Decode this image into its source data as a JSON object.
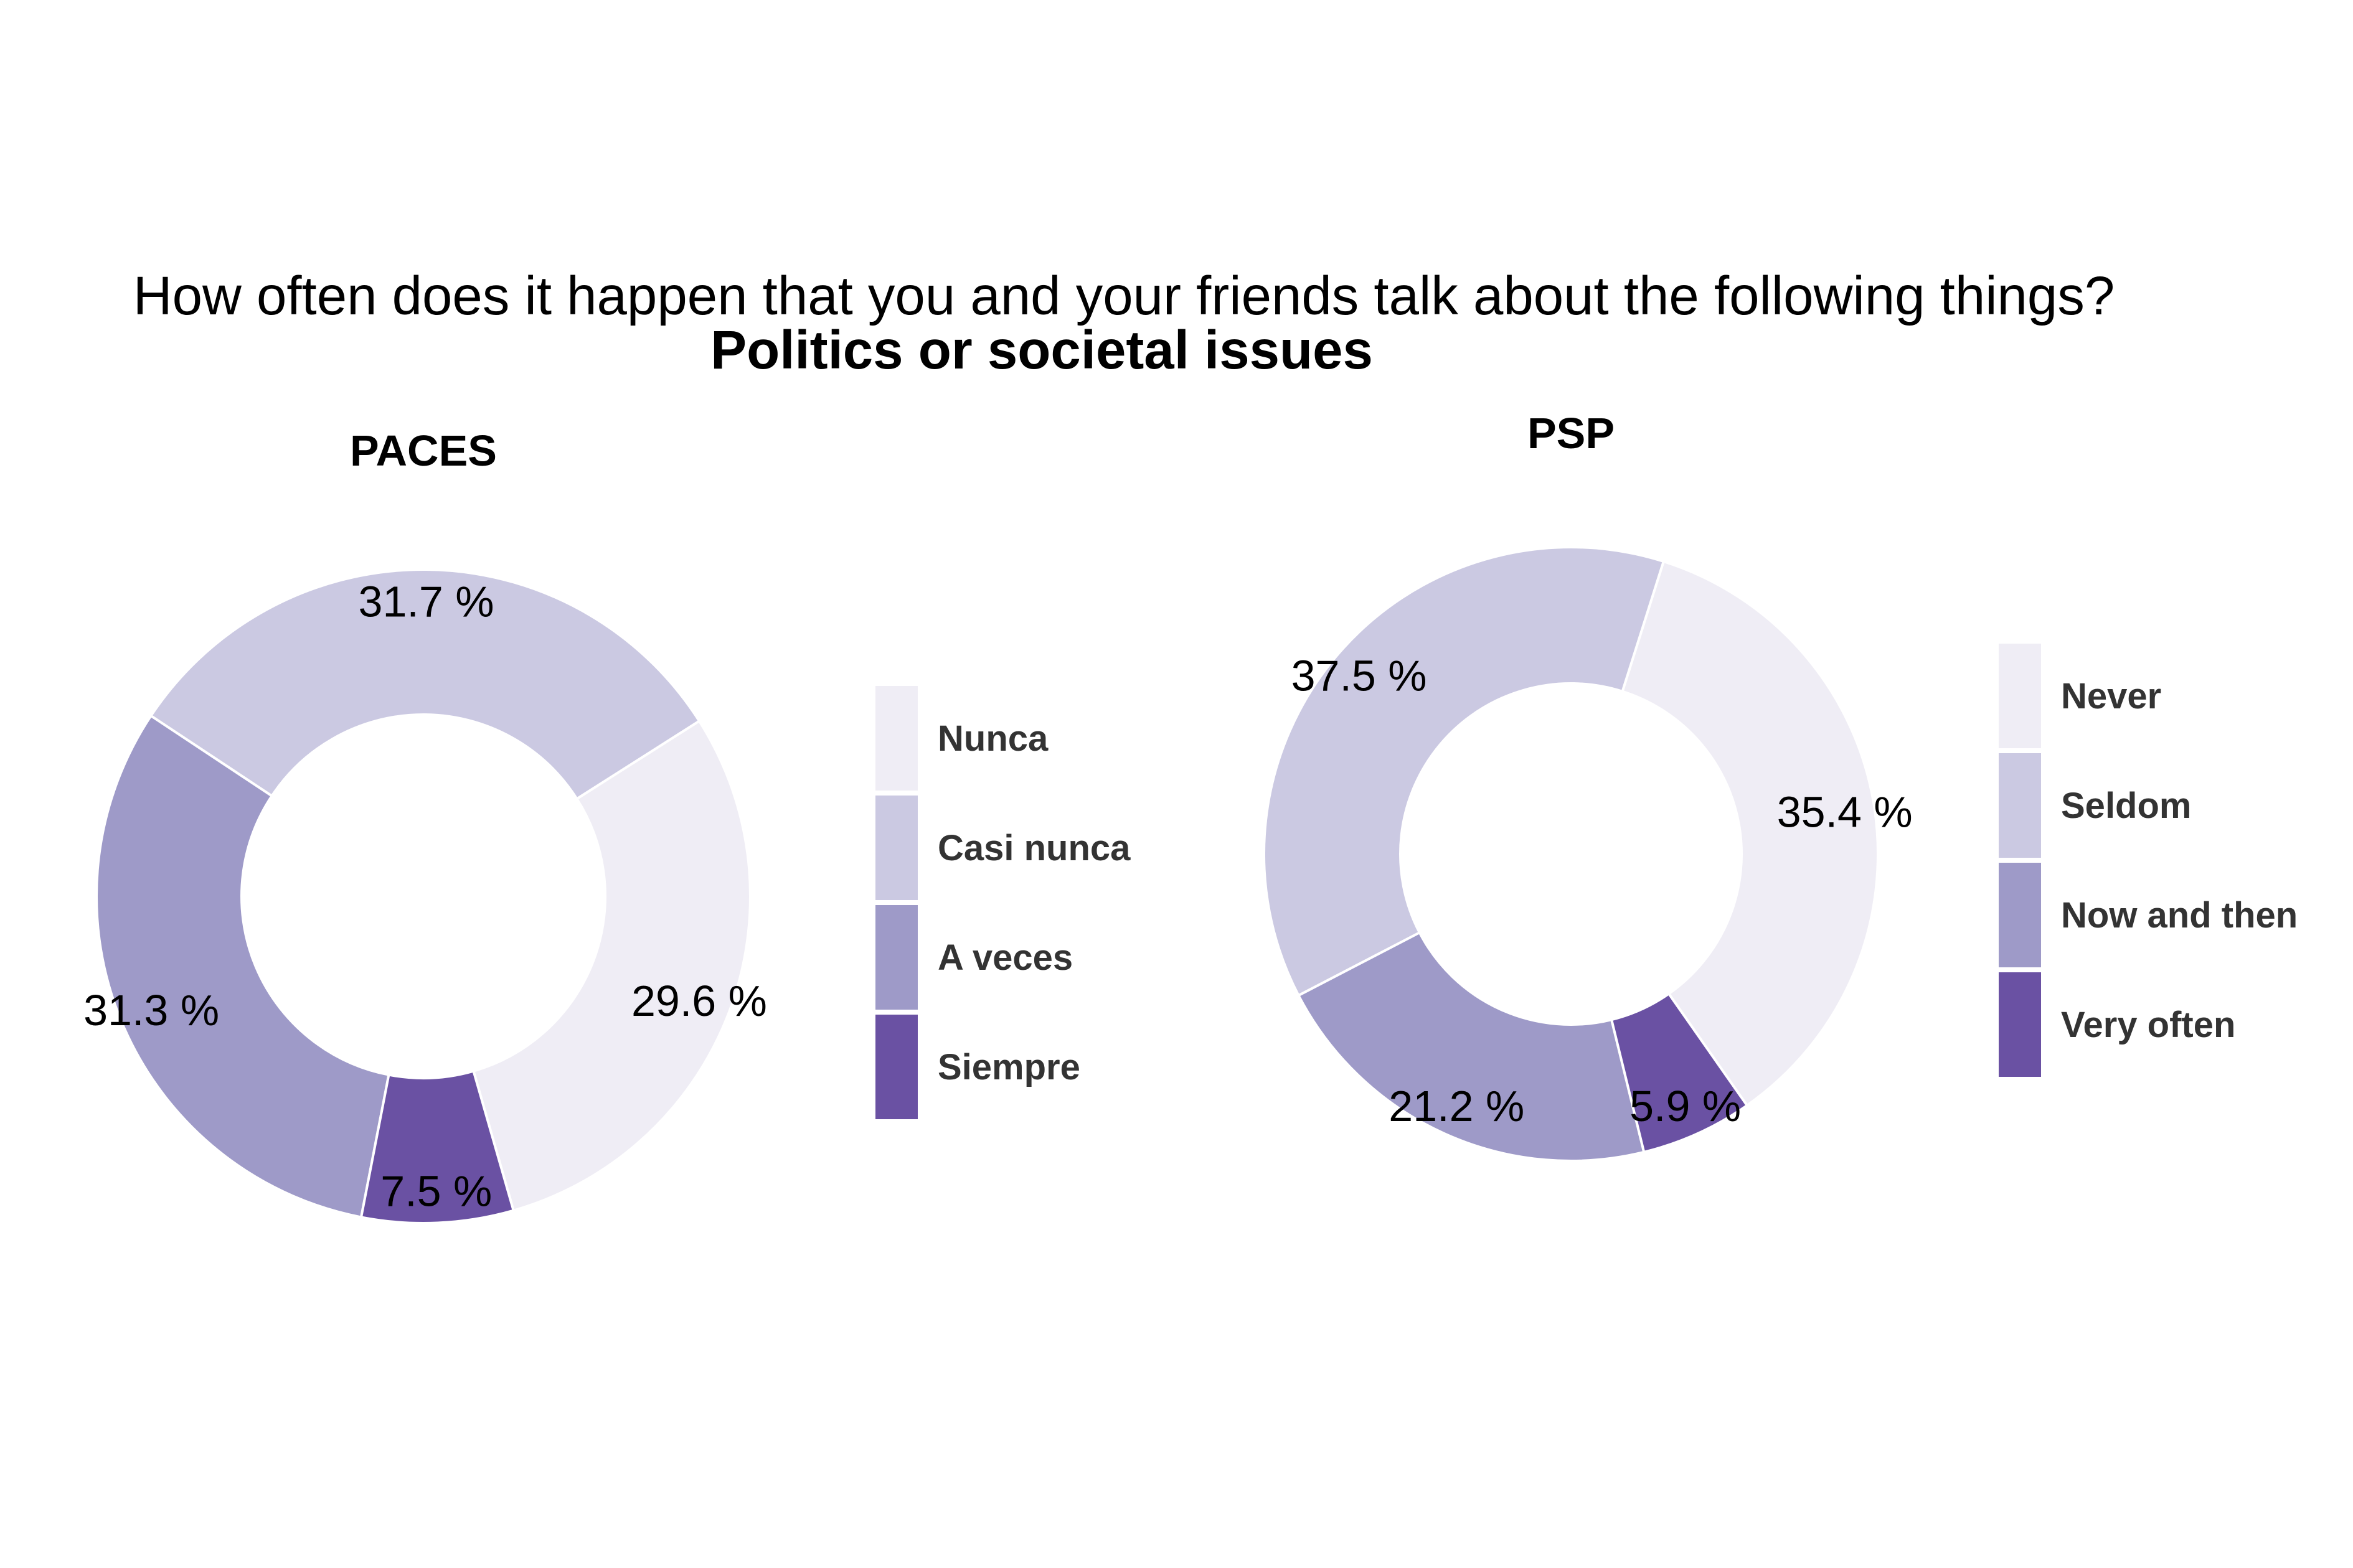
{
  "chart_data": {
    "type": "pie",
    "variant": "donut",
    "title": "How often does it happen that you and your friends talk about the following things?",
    "subtitle": "Politics or societal issues",
    "legend_placement": "right",
    "colors": [
      "#efedf5",
      "#cbc9e2",
      "#9e9ac8",
      "#6a51a3"
    ],
    "panels": [
      {
        "name": "PACES",
        "categories": [
          "Nunca",
          "Casi nunca",
          "A veces",
          "Siempre"
        ],
        "values": [
          29.6,
          31.7,
          31.3,
          7.5
        ],
        "labels": [
          "29.6 %",
          "31.7 %",
          "31.3 %",
          "7.5 %"
        ]
      },
      {
        "name": "PSP",
        "categories": [
          "Never",
          "Seldom",
          "Now and then",
          "Very often"
        ],
        "values": [
          35.4,
          37.5,
          21.2,
          5.9
        ],
        "labels": [
          "35.4 %",
          "37.5 %",
          "21.2 %",
          "5.9 %"
        ]
      }
    ]
  }
}
